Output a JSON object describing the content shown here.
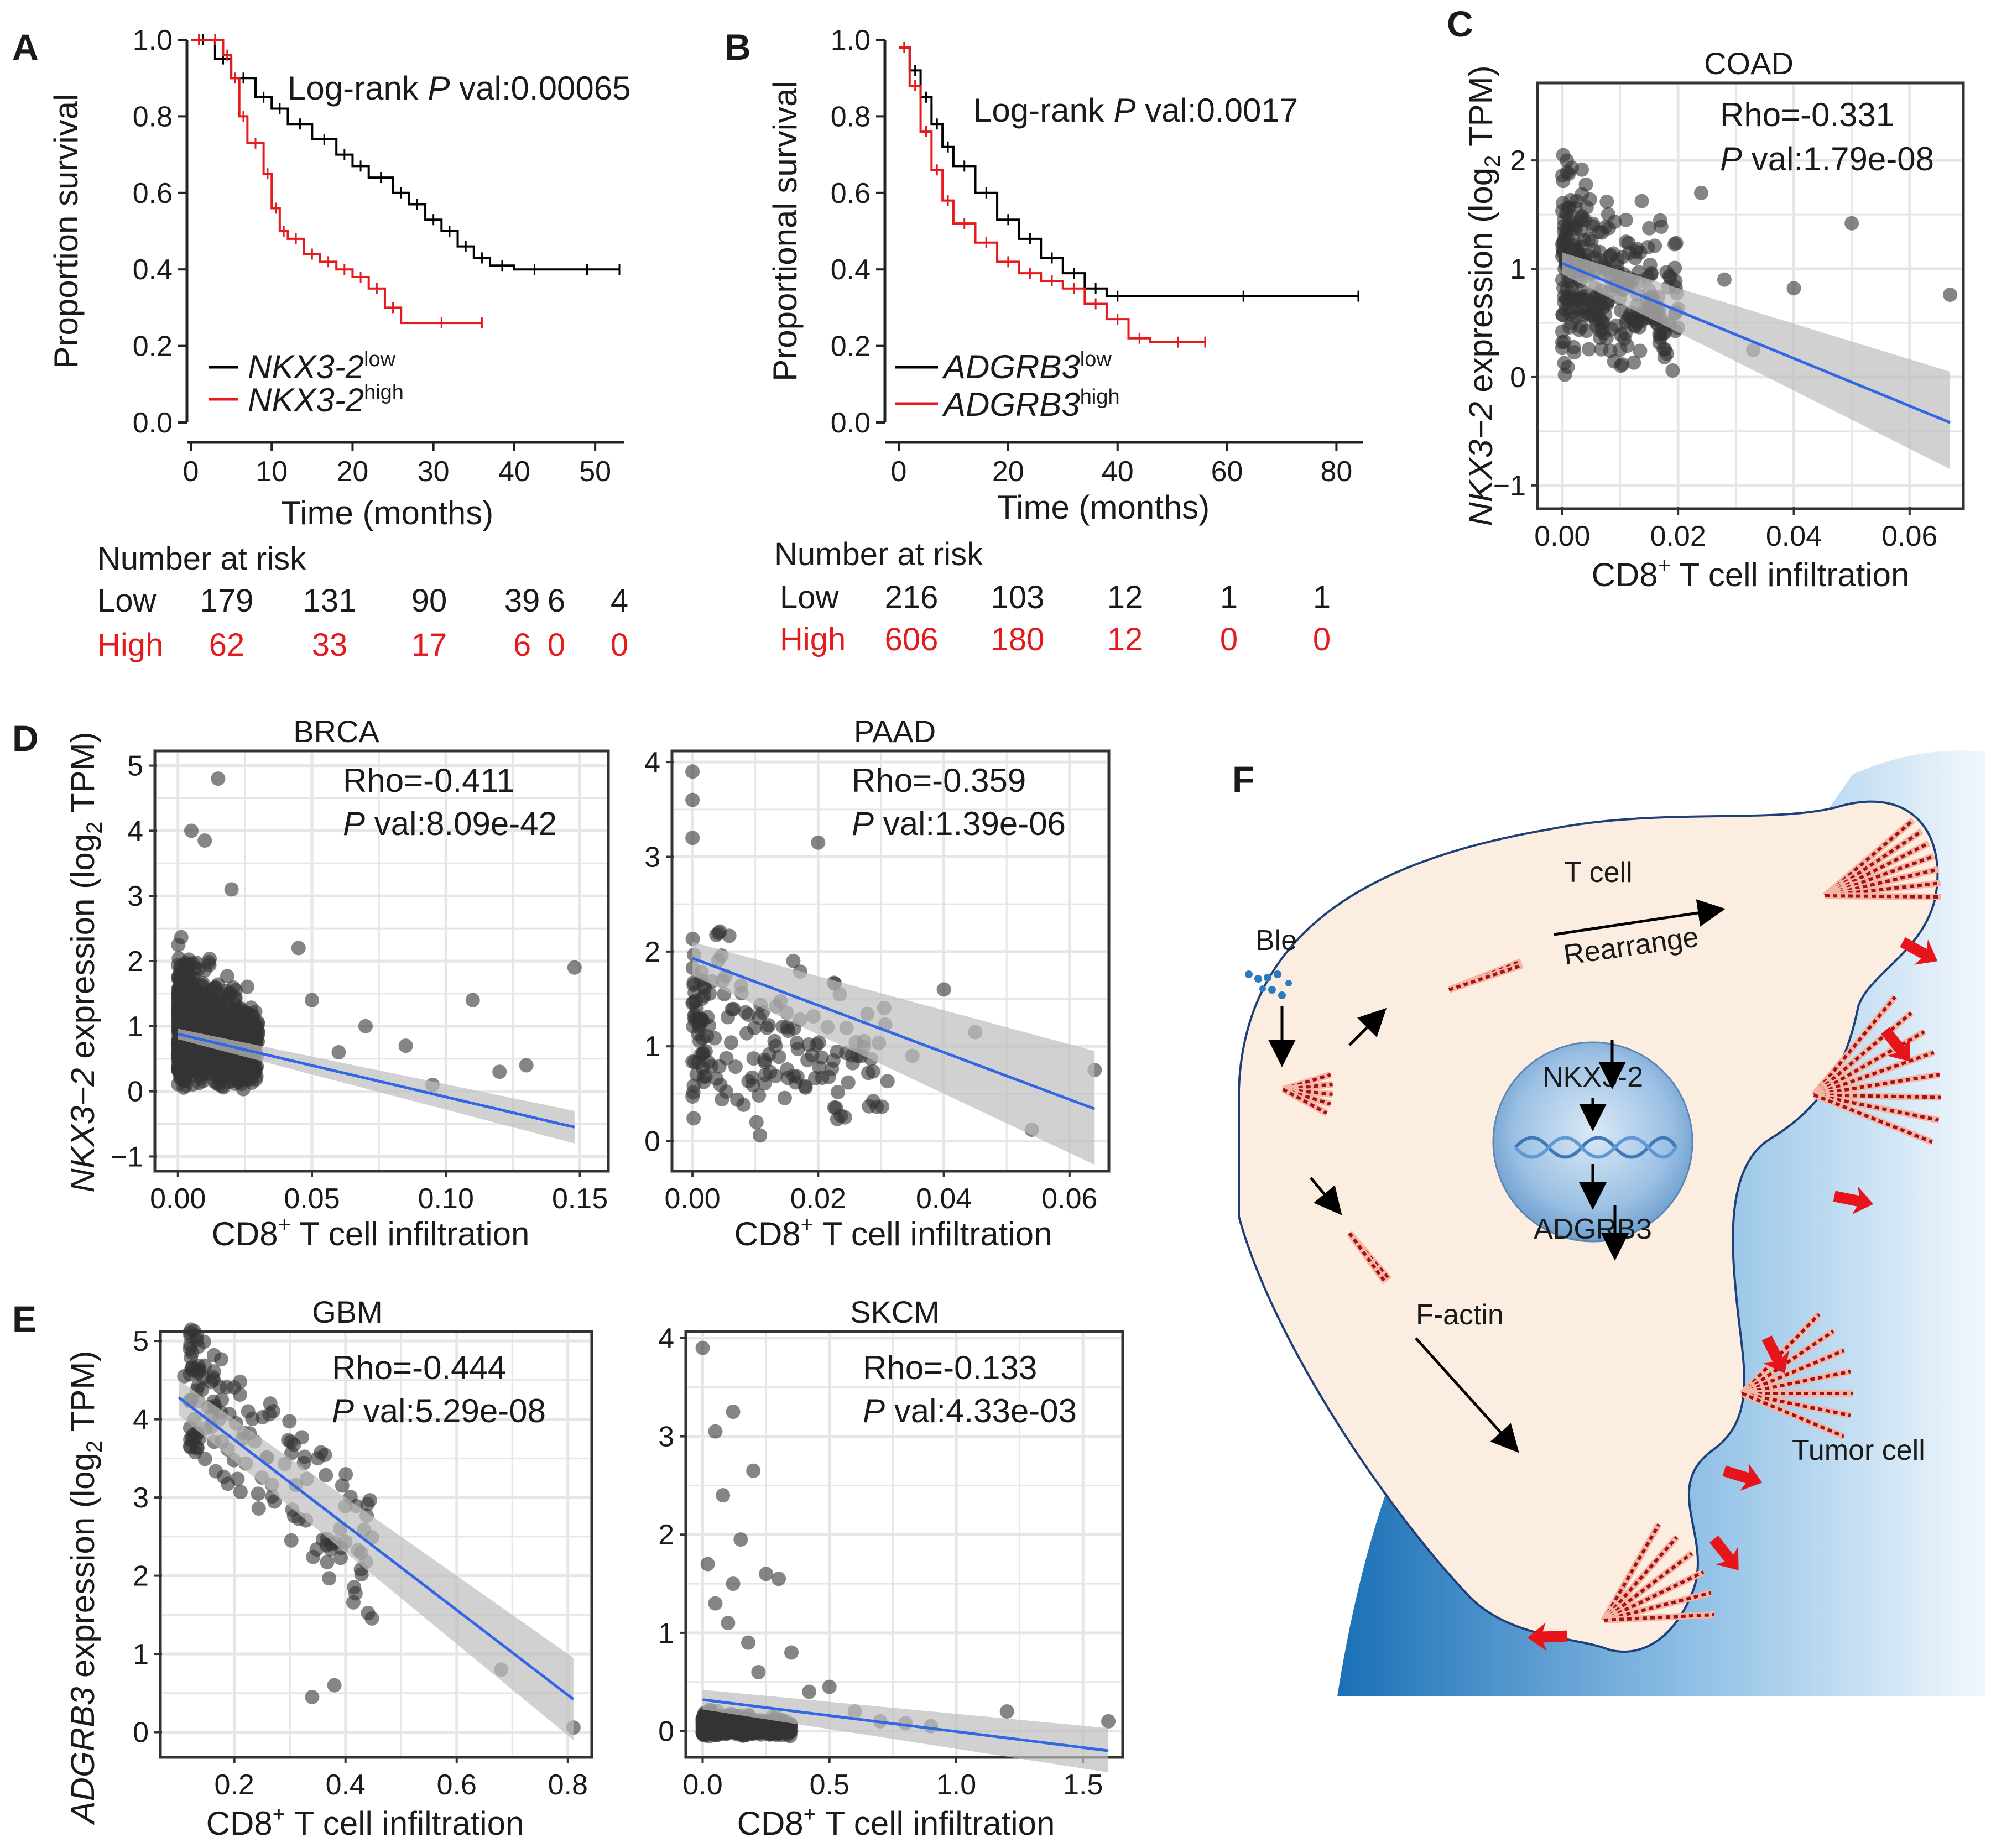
{
  "panels": {
    "A": {
      "letter": "A",
      "ylabel": "Proportion survival",
      "xlabel": "Time (months)",
      "pval_prefix": "Log-rank ",
      "pval_italic": "P",
      "pval_rest": " val:0.00065",
      "legend_low_gene": "NKX3-2",
      "legend_low_sup": "low",
      "legend_high_gene": "NKX3-2",
      "legend_high_sup": "high",
      "risk_title": "Number at risk",
      "risk_low_label": "Low",
      "risk_high_label": "High",
      "risk_low": [
        "179",
        "131",
        "90",
        "39",
        "6",
        "4"
      ],
      "risk_high": [
        "62",
        "33",
        "17",
        "6",
        "0",
        "0"
      ]
    },
    "B": {
      "letter": "B",
      "ylabel": "Proportional survival",
      "xlabel": "Time (months)",
      "pval_prefix": "Log-rank ",
      "pval_italic": "P",
      "pval_rest": " val:0.0017",
      "legend_low_gene": "ADGRB3",
      "legend_low_sup": "low",
      "legend_high_gene": "ADGRB3",
      "legend_high_sup": "high",
      "risk_title": "Number at risk",
      "risk_low_label": "Low",
      "risk_high_label": "High",
      "risk_low": [
        "216",
        "103",
        "12",
        "1",
        "1"
      ],
      "risk_high": [
        "606",
        "180",
        "12",
        "0",
        "0"
      ]
    },
    "C": {
      "letter": "C",
      "title": "COAD",
      "rho": "Rho=-0.331",
      "pval_italic": "P",
      "pval_rest": " val:1.79e-08",
      "ylabel_gene": "NKX3−2",
      "ylabel_rest": " expression (log",
      "ylabel_sub": "2",
      "ylabel_tail": " TPM)",
      "xlabel_a": "CD8",
      "xlabel_sup": "+",
      "xlabel_b": " T cell infiltration"
    },
    "D": {
      "letter": "D",
      "ylabel_gene": "NKX3−2",
      "ylabel_rest": " expression (log",
      "ylabel_sub": "2",
      "ylabel_tail": " TPM)",
      "left": {
        "title": "BRCA",
        "rho": "Rho=-0.411",
        "pval_italic": "P",
        "pval_rest": " val:8.09e-42",
        "xlabel_a": "CD8",
        "xlabel_sup": "+",
        "xlabel_b": " T cell infiltration"
      },
      "right": {
        "title": "PAAD",
        "rho": "Rho=-0.359",
        "pval_italic": "P",
        "pval_rest": " val:1.39e-06",
        "xlabel_a": "CD8",
        "xlabel_sup": "+",
        "xlabel_b": " T cell infiltration"
      }
    },
    "E": {
      "letter": "E",
      "ylabel_gene": "ADGRB3",
      "ylabel_rest": " expression (log",
      "ylabel_sub": "2",
      "ylabel_tail": " TPM)",
      "left": {
        "title": "GBM",
        "rho": "Rho=-0.444",
        "pval_italic": "P",
        "pval_rest": " val:5.29e-08",
        "xlabel_a": "CD8",
        "xlabel_sup": "+",
        "xlabel_b": " T cell infiltration"
      },
      "right": {
        "title": "SKCM",
        "rho": "Rho=-0.133",
        "pval_italic": "P",
        "pval_rest": " val:4.33e-03",
        "xlabel_a": "CD8",
        "xlabel_sup": "+",
        "xlabel_b": " T cell infiltration"
      }
    },
    "F": {
      "letter": "F",
      "t_cell": "T cell",
      "rearrange": "Rearrange",
      "ble": "Ble",
      "nkx": "NKX3-2",
      "adgrb3": "ADGRB3",
      "factin": "F-actin",
      "tumor": "Tumor cell"
    }
  },
  "colors": {
    "low": "#000000",
    "high": "#e41a1c",
    "points": "#333333",
    "fit": "#3366e6",
    "fit_band": "#bdbdbd",
    "grid": "#e6e6e6",
    "cell_fill": "#fbeee0",
    "tumor_dark": "#1a6fb5",
    "actin": "#a50f15",
    "arrow_red": "#e8141c"
  },
  "chart_data": [
    {
      "id": "A",
      "type": "line",
      "xlabel": "Time (months)",
      "ylabel": "Proportion survival",
      "xlim": [
        0,
        53
      ],
      "ylim": [
        0,
        1
      ],
      "xticks": [
        0,
        10,
        20,
        30,
        40,
        50
      ],
      "yticks": [
        0.0,
        0.2,
        0.4,
        0.6,
        0.8,
        1.0
      ],
      "series": [
        {
          "name": "NKX3-2 low",
          "color": "#000000",
          "x": [
            0,
            3,
            5,
            8,
            10,
            12,
            15,
            18,
            20,
            22,
            25,
            27,
            29,
            31,
            33,
            35,
            37,
            40,
            45,
            53
          ],
          "y": [
            1.0,
            0.95,
            0.9,
            0.85,
            0.82,
            0.78,
            0.74,
            0.7,
            0.67,
            0.64,
            0.6,
            0.57,
            0.53,
            0.5,
            0.46,
            0.43,
            0.41,
            0.4,
            0.4,
            0.4
          ]
        },
        {
          "name": "NKX3-2 high",
          "color": "#e41a1c",
          "x": [
            0,
            2,
            4,
            5,
            6,
            7,
            9,
            10,
            11,
            12,
            14,
            16,
            18,
            20,
            22,
            24,
            26,
            36
          ],
          "y": [
            1.0,
            1.0,
            0.96,
            0.9,
            0.8,
            0.73,
            0.65,
            0.56,
            0.5,
            0.48,
            0.44,
            0.42,
            0.4,
            0.38,
            0.35,
            0.3,
            0.26,
            0.26
          ]
        }
      ]
    },
    {
      "id": "B",
      "type": "line",
      "xlabel": "Time (months)",
      "ylabel": "Proportional survival",
      "xlim": [
        0,
        84
      ],
      "ylim": [
        0,
        1
      ],
      "xticks": [
        0,
        20,
        40,
        60,
        80
      ],
      "yticks": [
        0.0,
        0.2,
        0.4,
        0.6,
        0.8,
        1.0
      ],
      "series": [
        {
          "name": "ADGRB3 low",
          "color": "#000000",
          "x": [
            0,
            2,
            4,
            6,
            8,
            10,
            14,
            18,
            22,
            26,
            30,
            34,
            38,
            42,
            84
          ],
          "y": [
            0.98,
            0.92,
            0.85,
            0.78,
            0.72,
            0.67,
            0.6,
            0.53,
            0.48,
            0.43,
            0.39,
            0.35,
            0.33,
            0.33,
            0.33
          ]
        },
        {
          "name": "ADGRB3 high",
          "color": "#e41a1c",
          "x": [
            0,
            2,
            4,
            6,
            8,
            10,
            14,
            18,
            22,
            26,
            30,
            34,
            38,
            42,
            46,
            56
          ],
          "y": [
            0.98,
            0.88,
            0.76,
            0.66,
            0.58,
            0.52,
            0.47,
            0.42,
            0.39,
            0.37,
            0.35,
            0.31,
            0.27,
            0.22,
            0.21,
            0.21
          ]
        }
      ]
    },
    {
      "id": "C",
      "type": "scatter",
      "title": "COAD",
      "xlim": [
        -0.004,
        0.069
      ],
      "ylim": [
        -1.2,
        2.7
      ],
      "xticks": [
        0.0,
        0.02,
        0.04,
        0.06
      ],
      "xtick_labels": [
        "0.00",
        "0.02",
        "0.04",
        "0.06"
      ],
      "yticks": [
        -1,
        0,
        1,
        2
      ],
      "ytick_labels": [
        "−1",
        "0",
        "1",
        "2"
      ],
      "fit": {
        "x0": 0.0,
        "y0": 1.05,
        "x1": 0.067,
        "y1": -0.42
      },
      "band": {
        "lo0": 0.95,
        "hi0": 1.15,
        "lo1": -0.85,
        "hi1": 0.05
      },
      "seed": 11,
      "cluster": {
        "n": 300,
        "xmax": 0.02,
        "ymin": -0.1,
        "ymax": 2.6
      },
      "extra": [
        [
          0.05,
          1.42
        ],
        [
          0.04,
          0.82
        ],
        [
          0.067,
          0.76
        ],
        [
          0.033,
          0.25
        ],
        [
          0.024,
          1.7
        ],
        [
          0.028,
          0.9
        ]
      ]
    },
    {
      "id": "D1",
      "type": "scatter",
      "title": "BRCA",
      "xlim": [
        -0.008,
        0.16
      ],
      "ylim": [
        -1.2,
        5.2
      ],
      "xticks": [
        0.0,
        0.05,
        0.1,
        0.15
      ],
      "xtick_labels": [
        "0.00",
        "0.05",
        "0.10",
        "0.15"
      ],
      "yticks": [
        -1,
        0,
        1,
        2,
        3,
        4,
        5
      ],
      "ytick_labels": [
        "−1",
        "0",
        "1",
        "2",
        "3",
        "4",
        "5"
      ],
      "fit": {
        "x0": 0.0,
        "y0": 0.88,
        "x1": 0.148,
        "y1": -0.55
      },
      "band": {
        "lo0": 0.8,
        "hi0": 0.96,
        "lo1": -0.8,
        "hi1": -0.3
      },
      "seed": 21,
      "cluster": {
        "n": 900,
        "xmax": 0.03,
        "ymin": -0.05,
        "ymax": 2.5
      },
      "extra": [
        [
          0.015,
          4.8
        ],
        [
          0.005,
          4.0
        ],
        [
          0.01,
          3.85
        ],
        [
          0.02,
          3.1
        ],
        [
          0.148,
          1.9
        ],
        [
          0.11,
          1.4
        ],
        [
          0.12,
          0.3
        ],
        [
          0.085,
          0.7
        ],
        [
          0.095,
          0.1
        ],
        [
          0.045,
          2.2
        ],
        [
          0.05,
          1.4
        ],
        [
          0.06,
          0.6
        ],
        [
          0.07,
          1.0
        ],
        [
          0.13,
          0.4
        ]
      ]
    },
    {
      "id": "D2",
      "type": "scatter",
      "title": "PAAD",
      "xlim": [
        -0.003,
        0.066
      ],
      "ylim": [
        -0.3,
        4.1
      ],
      "xticks": [
        0.0,
        0.02,
        0.04,
        0.06
      ],
      "xtick_labels": [
        "0.00",
        "0.02",
        "0.04",
        "0.06"
      ],
      "yticks": [
        0,
        1,
        2,
        3,
        4
      ],
      "ytick_labels": [
        "0",
        "1",
        "2",
        "3",
        "4"
      ],
      "fit": {
        "x0": 0.0,
        "y0": 1.93,
        "x1": 0.064,
        "y1": 0.34
      },
      "band": {
        "lo0": 1.75,
        "hi0": 2.1,
        "lo1": -0.25,
        "hi1": 0.95
      },
      "seed": 31,
      "cluster": {
        "n": 170,
        "xmax": 0.032,
        "ymin": 0.0,
        "ymax": 2.8
      },
      "extra": [
        [
          0.0,
          3.9
        ],
        [
          0.0,
          3.6
        ],
        [
          0.0,
          3.2
        ],
        [
          0.064,
          0.75
        ],
        [
          0.054,
          0.12
        ],
        [
          0.045,
          1.15
        ],
        [
          0.04,
          1.6
        ],
        [
          0.035,
          0.9
        ],
        [
          0.02,
          3.15
        ]
      ]
    },
    {
      "id": "E1",
      "type": "scatter",
      "title": "GBM",
      "xlim": [
        0.07,
        0.84
      ],
      "ylim": [
        -0.3,
        5.1
      ],
      "xticks": [
        0.2,
        0.4,
        0.6,
        0.8
      ],
      "xtick_labels": [
        "0.2",
        "0.4",
        "0.6",
        "0.8"
      ],
      "yticks": [
        0,
        1,
        2,
        3,
        4,
        5
      ],
      "ytick_labels": [
        "0",
        "1",
        "2",
        "3",
        "4",
        "5"
      ],
      "fit": {
        "x0": 0.1,
        "y0": 4.28,
        "x1": 0.81,
        "y1": 0.42
      },
      "band": {
        "lo0": 4.05,
        "hi0": 4.5,
        "lo1": -0.1,
        "hi1": 0.95
      },
      "seed": 41,
      "cluster": {
        "n": 150,
        "xmin": 0.12,
        "xmax": 0.45,
        "ymin": 1.3,
        "ymax": 4.8,
        "trend": true
      },
      "extra": [
        [
          0.81,
          0.06
        ],
        [
          0.68,
          0.8
        ],
        [
          0.38,
          0.6
        ],
        [
          0.34,
          0.45
        ],
        [
          0.11,
          4.55
        ]
      ]
    },
    {
      "id": "E2",
      "type": "scatter",
      "title": "SKCM",
      "xlim": [
        -0.06,
        1.65
      ],
      "ylim": [
        -0.25,
        4.05
      ],
      "xticks": [
        0.0,
        0.5,
        1.0,
        1.5
      ],
      "xtick_labels": [
        "0.0",
        "0.5",
        "1.0",
        "1.5"
      ],
      "yticks": [
        0,
        1,
        2,
        3,
        4
      ],
      "ytick_labels": [
        "0",
        "1",
        "2",
        "3",
        "4"
      ],
      "fit": {
        "x0": 0.0,
        "y0": 0.32,
        "x1": 1.6,
        "y1": -0.2
      },
      "band": {
        "lo0": 0.22,
        "hi0": 0.42,
        "lo1": -0.42,
        "hi1": 0.03
      },
      "seed": 51,
      "cluster": {
        "n": 650,
        "xmax": 0.35,
        "ymin": -0.06,
        "ymax": 0.25
      },
      "extra": [
        [
          0.0,
          3.9
        ],
        [
          0.12,
          3.25
        ],
        [
          0.05,
          3.05
        ],
        [
          0.2,
          2.65
        ],
        [
          0.08,
          2.4
        ],
        [
          0.15,
          1.95
        ],
        [
          0.02,
          1.7
        ],
        [
          0.25,
          1.6
        ],
        [
          0.3,
          1.55
        ],
        [
          0.1,
          1.1
        ],
        [
          0.18,
          0.9
        ],
        [
          0.35,
          0.8
        ],
        [
          0.42,
          0.4
        ],
        [
          0.5,
          0.45
        ],
        [
          0.7,
          0.1
        ],
        [
          0.8,
          0.08
        ],
        [
          0.9,
          0.05
        ],
        [
          1.2,
          0.2
        ],
        [
          1.6,
          0.1
        ],
        [
          0.6,
          0.2
        ],
        [
          0.05,
          1.3
        ],
        [
          0.12,
          1.5
        ],
        [
          0.22,
          0.6
        ]
      ]
    }
  ]
}
